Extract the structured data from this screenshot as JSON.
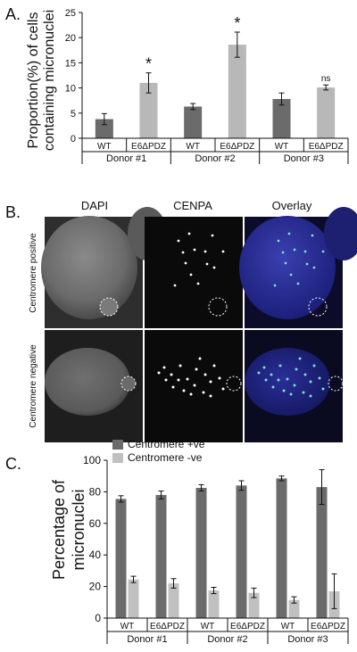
{
  "panel_a": {
    "letter": "A.",
    "ylabel_line1": "Proportion(%) of cells",
    "ylabel_line2": "containing micronuclei",
    "yticks": [
      "0",
      "5",
      "10",
      "15",
      "20",
      "25"
    ]
  },
  "panel_b": {
    "letter": "B.",
    "col_titles": [
      "DAPI",
      "CENPA",
      "Overlay"
    ],
    "row_labels": [
      "Centromere positive",
      "Centromere negative"
    ]
  },
  "panel_c": {
    "letter": "C.",
    "ylabel_line1": "Percentage of",
    "ylabel_line2": "micronuclei",
    "yticks": [
      "0",
      "20",
      "40",
      "60",
      "80",
      "100"
    ]
  },
  "chart_data": [
    {
      "type": "bar",
      "id": "A",
      "categories": [
        "WT",
        "E6ΔPDZ",
        "WT",
        "E6ΔPDZ",
        "WT",
        "E6ΔPDZ"
      ],
      "groups": [
        "Donor #1",
        "Donor #2",
        "Donor #3"
      ],
      "values": [
        3.8,
        11.0,
        6.3,
        18.6,
        7.8,
        10.1
      ],
      "errors": [
        1.1,
        2.0,
        0.6,
        2.5,
        1.2,
        0.5
      ],
      "annotations": [
        "",
        "*",
        "",
        "*",
        "",
        "ns"
      ],
      "colors": [
        "#6b6b6b",
        "#b8b8b8",
        "#6b6b6b",
        "#b8b8b8",
        "#6b6b6b",
        "#b8b8b8"
      ],
      "ylim": [
        0,
        25
      ],
      "ylabel": "Proportion(%) of cells containing micronuclei"
    },
    {
      "type": "bar",
      "id": "C",
      "categories": [
        "WT",
        "E6ΔPDZ",
        "WT",
        "E6ΔPDZ",
        "WT",
        "E6ΔPDZ"
      ],
      "groups": [
        "Donor #1",
        "Donor #2",
        "Donor #3"
      ],
      "series": [
        {
          "name": "Centromere +ve",
          "color": "#6b6b6b",
          "values": [
            75.5,
            78,
            82.5,
            84,
            88.5,
            83
          ],
          "errors": [
            2,
            2.5,
            2,
            3,
            1.5,
            11
          ]
        },
        {
          "name": "Centromere -ve",
          "color": "#c0c0c0",
          "values": [
            24.5,
            22,
            17.5,
            16,
            11.5,
            17
          ],
          "errors": [
            2,
            3,
            2,
            3,
            2,
            11
          ]
        }
      ],
      "ylim": [
        0,
        100
      ],
      "ylabel": "Percentage of micronuclei",
      "legend": "top-left"
    }
  ]
}
